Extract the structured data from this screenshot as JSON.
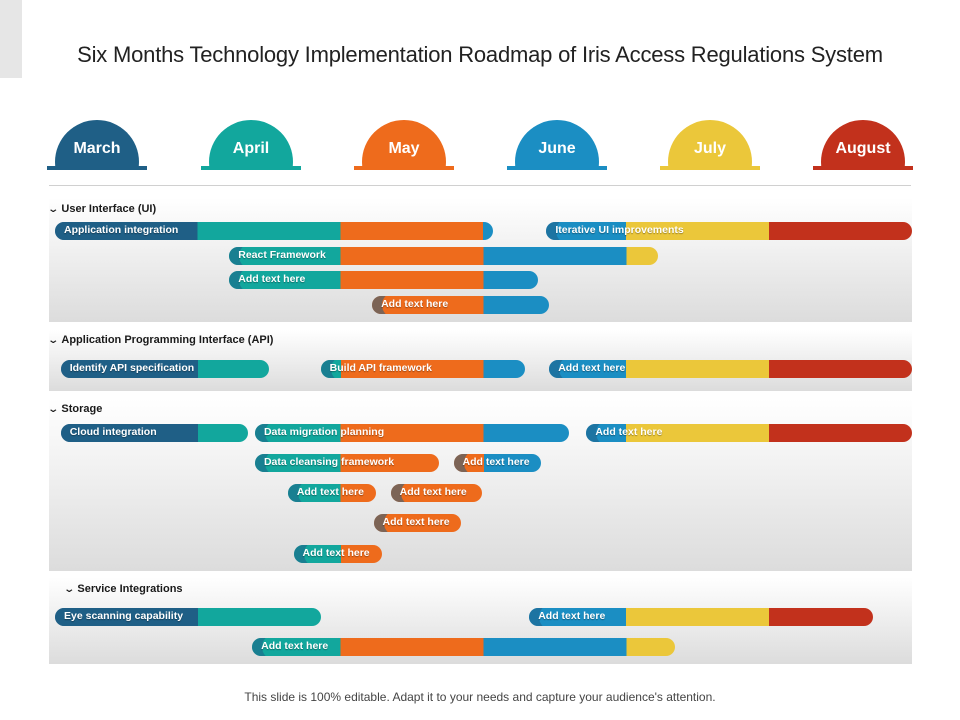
{
  "title": "Six Months Technology Implementation Roadmap of Iris Access Regulations System",
  "footer": "This slide is 100% editable. Adapt it to your needs and capture your audience's attention.",
  "colors": {
    "navy": "#1f5f86",
    "teal": "#12a79d",
    "orange": "#ee6b1c",
    "blue": "#1b8ec3",
    "yellow": "#ebc73a",
    "red": "#c2311c"
  },
  "months": [
    {
      "label": "March",
      "color": "#1f5f86"
    },
    {
      "label": "April",
      "color": "#12a79d"
    },
    {
      "label": "May",
      "color": "#ee6b1c"
    },
    {
      "label": "June",
      "color": "#1b8ec3"
    },
    {
      "label": "July",
      "color": "#ebc73a"
    },
    {
      "label": "August",
      "color": "#c2311c"
    }
  ],
  "sections": [
    {
      "name": "User Interface (UI)",
      "tasks": [
        {
          "label": "Application integration",
          "start": 0.0,
          "end": 3.07
        },
        {
          "label": "Iterative UI improvements",
          "start": 3.44,
          "end": 6.0
        },
        {
          "label": "React Framework",
          "start": 1.22,
          "end": 4.22
        },
        {
          "label": "Add text here",
          "start": 1.22,
          "end": 3.38
        },
        {
          "label": "Add text here",
          "start": 2.22,
          "end": 3.46
        }
      ]
    },
    {
      "name": "Application  Programming Interface (API)",
      "tasks": [
        {
          "label": "Identify API specification",
          "start": 0.04,
          "end": 1.5
        },
        {
          "label": "Build API framework",
          "start": 1.86,
          "end": 3.29
        },
        {
          "label": "Add text here",
          "start": 3.46,
          "end": 6.0
        }
      ]
    },
    {
      "name": "Storage",
      "tasks": [
        {
          "label": "Cloud integration",
          "start": 0.04,
          "end": 1.35
        },
        {
          "label": "Data migration planning",
          "start": 1.4,
          "end": 3.6
        },
        {
          "label": "Add text here",
          "start": 3.72,
          "end": 6.0
        },
        {
          "label": "Data cleansing framework",
          "start": 1.4,
          "end": 2.69
        },
        {
          "label": "Add text here",
          "start": 2.79,
          "end": 3.4
        },
        {
          "label": "Add text here",
          "start": 1.63,
          "end": 2.25
        },
        {
          "label": "Add text here",
          "start": 2.35,
          "end": 2.99
        },
        {
          "label": "Add text here",
          "start": 2.23,
          "end": 2.84
        },
        {
          "label": "Add text here",
          "start": 1.67,
          "end": 2.29
        }
      ]
    },
    {
      "name": "Service Integrations",
      "tasks": [
        {
          "label": "Eye scanning capability",
          "start": 0.0,
          "end": 1.86
        },
        {
          "label": "Add text here",
          "start": 3.32,
          "end": 5.73
        },
        {
          "label": "Add text here",
          "start": 1.38,
          "end": 4.34
        }
      ]
    }
  ]
}
